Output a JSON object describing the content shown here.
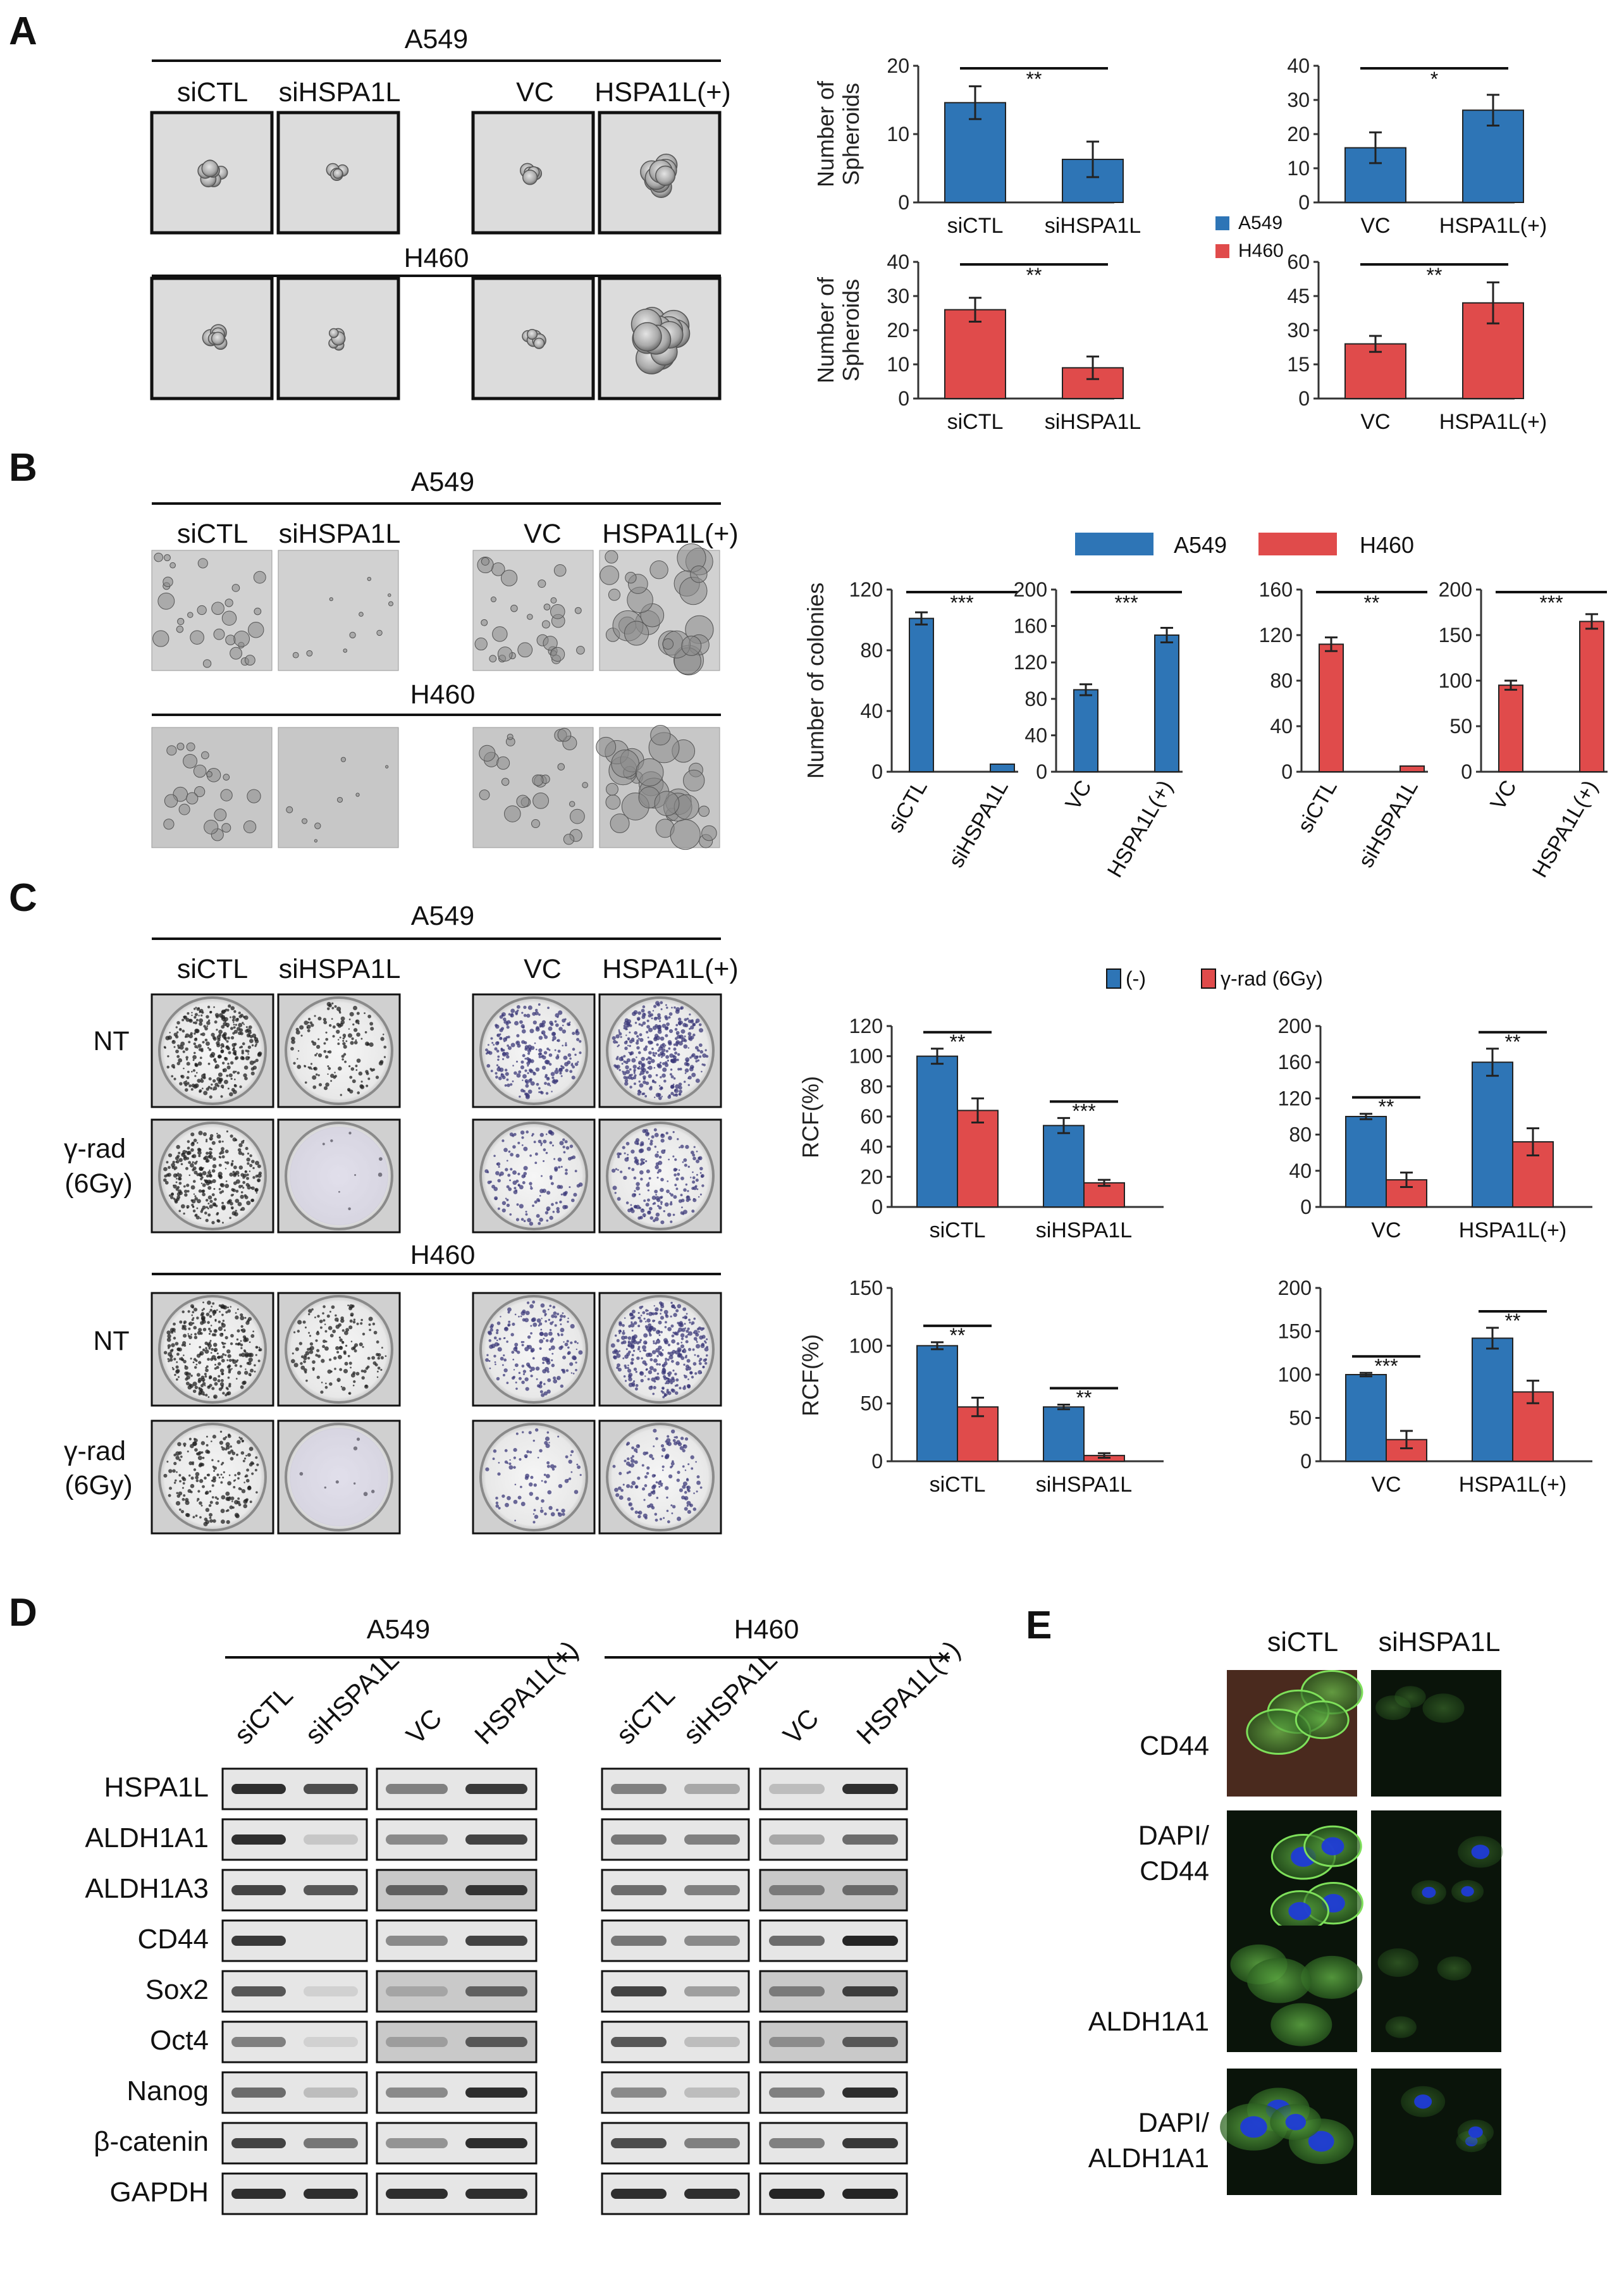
{
  "panels": {
    "A": "A",
    "B": "B",
    "C": "C",
    "D": "D",
    "E": "E"
  },
  "colors": {
    "blue": "#2E75B6",
    "red": "#E04B4B",
    "green_stain": "#3d8a2e",
    "nucleus": "#1f3bd6"
  },
  "panel_A": {
    "lines": [
      "A549",
      "H460"
    ],
    "sirna_labels": [
      "siCTL",
      "siHSPA1L"
    ],
    "overexp_labels": [
      "VC",
      "HSPA1L(+)"
    ],
    "ylabel": "Number of Spheroids",
    "legend": [
      "A549",
      "H460"
    ]
  },
  "panel_B": {
    "lines": [
      "A549",
      "H460"
    ],
    "sirna_labels": [
      "siCTL",
      "siHSPA1L"
    ],
    "overexp_labels": [
      "VC",
      "HSPA1L(+)"
    ],
    "ylabel": "Number of colonies",
    "legend": [
      "A549",
      "H460"
    ]
  },
  "panel_C": {
    "lines": [
      "A549",
      "H460"
    ],
    "sirna_labels": [
      "siCTL",
      "siHSPA1L"
    ],
    "overexp_labels": [
      "VC",
      "HSPA1L(+)"
    ],
    "row_labels": [
      "NT",
      "γ-rad",
      "(6Gy)"
    ],
    "ylabel": "RCF(%)",
    "legend": [
      "(-)",
      "γ-rad (6Gy)"
    ]
  },
  "panel_D": {
    "lines": [
      "A549",
      "H460"
    ],
    "lanes": [
      "siCTL",
      "siHSPA1L",
      "VC",
      "HSPA1L(+)"
    ],
    "proteins": [
      "HSPA1L",
      "ALDH1A1",
      "ALDH1A3",
      "CD44",
      "Sox2",
      "Oct4",
      "Nanog",
      "β-catenin",
      "GAPDH"
    ]
  },
  "panel_E": {
    "cols": [
      "siCTL",
      "siHSPA1L"
    ],
    "rows": [
      "CD44",
      "DAPI/",
      "CD44",
      "ALDH1A1",
      "DAPI/",
      "ALDH1A1"
    ]
  },
  "chart_data": [
    {
      "id": "A1",
      "type": "bar",
      "title": "",
      "xlabel": "",
      "ylabel": "Number of Spheroids",
      "categories": [
        "siCTL",
        "siHSPA1L"
      ],
      "series": [
        {
          "name": "A549",
          "values": [
            14.6,
            6.3
          ],
          "errors": [
            2.4,
            2.6
          ]
        }
      ],
      "ylim": [
        0,
        20
      ],
      "ticks": [
        0,
        10,
        20
      ],
      "sig": [
        "**"
      ],
      "color": "#2E75B6"
    },
    {
      "id": "A2",
      "type": "bar",
      "title": "",
      "xlabel": "",
      "ylabel": "",
      "categories": [
        "VC",
        "HSPA1L(+)"
      ],
      "series": [
        {
          "name": "A549",
          "values": [
            16,
            27
          ],
          "errors": [
            4.5,
            4.5
          ]
        }
      ],
      "ylim": [
        0,
        40
      ],
      "ticks": [
        0,
        10,
        20,
        30,
        40
      ],
      "sig": [
        "*"
      ],
      "color": "#2E75B6"
    },
    {
      "id": "A3",
      "type": "bar",
      "title": "",
      "xlabel": "",
      "ylabel": "Number of Spheroids",
      "categories": [
        "siCTL",
        "siHSPA1L"
      ],
      "series": [
        {
          "name": "H460",
          "values": [
            26,
            9
          ],
          "errors": [
            3.5,
            3.3
          ]
        }
      ],
      "ylim": [
        0,
        40
      ],
      "ticks": [
        0,
        10,
        20,
        30,
        40
      ],
      "sig": [
        "**"
      ],
      "color": "#E04B4B"
    },
    {
      "id": "A4",
      "type": "bar",
      "title": "",
      "xlabel": "",
      "ylabel": "",
      "categories": [
        "VC",
        "HSPA1L(+)"
      ],
      "series": [
        {
          "name": "H460",
          "values": [
            24,
            42
          ],
          "errors": [
            3.5,
            9
          ]
        }
      ],
      "ylim": [
        0,
        60
      ],
      "ticks": [
        0,
        15,
        30,
        45,
        60
      ],
      "sig": [
        "**"
      ],
      "color": "#E04B4B"
    },
    {
      "id": "B1",
      "type": "bar",
      "title": "",
      "xlabel": "",
      "ylabel": "Number of colonies",
      "categories": [
        "siCTL",
        "siHSPA1L"
      ],
      "series": [
        {
          "name": "A549",
          "values": [
            101,
            5
          ],
          "errors": [
            4,
            0
          ]
        }
      ],
      "ylim": [
        0,
        120
      ],
      "ticks": [
        0,
        40,
        80,
        120
      ],
      "sig": [
        "***"
      ],
      "color": "#2E75B6"
    },
    {
      "id": "B2",
      "type": "bar",
      "title": "",
      "xlabel": "",
      "ylabel": "",
      "categories": [
        "VC",
        "HSPA1L(+)"
      ],
      "series": [
        {
          "name": "A549",
          "values": [
            90,
            150
          ],
          "errors": [
            6,
            8
          ]
        }
      ],
      "ylim": [
        0,
        200
      ],
      "ticks": [
        0,
        40,
        80,
        120,
        160,
        200
      ],
      "sig": [
        "***"
      ],
      "color": "#2E75B6"
    },
    {
      "id": "B3",
      "type": "bar",
      "title": "",
      "xlabel": "",
      "ylabel": "",
      "categories": [
        "siCTL",
        "siHSPA1L"
      ],
      "series": [
        {
          "name": "H460",
          "values": [
            112,
            5
          ],
          "errors": [
            6,
            0
          ]
        }
      ],
      "ylim": [
        0,
        160
      ],
      "ticks": [
        0,
        40,
        80,
        120,
        160
      ],
      "sig": [
        "**"
      ],
      "color": "#E04B4B"
    },
    {
      "id": "B4",
      "type": "bar",
      "title": "",
      "xlabel": "",
      "ylabel": "",
      "categories": [
        "VC",
        "HSPA1L(+)"
      ],
      "series": [
        {
          "name": "H460",
          "values": [
            95,
            165
          ],
          "errors": [
            5,
            8
          ]
        }
      ],
      "ylim": [
        0,
        200
      ],
      "ticks": [
        0,
        50,
        100,
        150,
        200
      ],
      "sig": [
        "***"
      ],
      "color": "#E04B4B"
    },
    {
      "id": "C1",
      "type": "bar",
      "title": "",
      "xlabel": "",
      "ylabel": "RCF(%)",
      "categories": [
        "siCTL",
        "siHSPA1L"
      ],
      "series": [
        {
          "name": "(-)",
          "values": [
            100,
            54
          ]
        },
        {
          "name": "γ-rad (6Gy)",
          "values": [
            64,
            16
          ]
        }
      ],
      "errors": [
        [
          5,
          5
        ],
        [
          8,
          2
        ]
      ],
      "ylim": [
        0,
        120
      ],
      "ticks": [
        0,
        20,
        40,
        60,
        80,
        100,
        120
      ],
      "sig": [
        "**",
        "***"
      ]
    },
    {
      "id": "C2",
      "type": "bar",
      "title": "",
      "xlabel": "",
      "ylabel": "",
      "categories": [
        "VC",
        "HSPA1L(+)"
      ],
      "series": [
        {
          "name": "(-)",
          "values": [
            100,
            160
          ]
        },
        {
          "name": "γ-rad (6Gy)",
          "values": [
            30,
            72
          ]
        }
      ],
      "errors": [
        [
          3,
          15
        ],
        [
          8,
          15
        ]
      ],
      "ylim": [
        0,
        200
      ],
      "ticks": [
        0,
        40,
        80,
        120,
        160,
        200
      ],
      "sig": [
        "**",
        "**"
      ]
    },
    {
      "id": "C3",
      "type": "bar",
      "title": "",
      "xlabel": "",
      "ylabel": "RCF(%)",
      "categories": [
        "siCTL",
        "siHSPA1L"
      ],
      "series": [
        {
          "name": "(-)",
          "values": [
            100,
            47
          ]
        },
        {
          "name": "γ-rad (6Gy)",
          "values": [
            47,
            5
          ]
        }
      ],
      "errors": [
        [
          3,
          2
        ],
        [
          8,
          2
        ]
      ],
      "ylim": [
        0,
        150
      ],
      "ticks": [
        0,
        50,
        100,
        150
      ],
      "sig": [
        "**",
        "**"
      ]
    },
    {
      "id": "C4",
      "type": "bar",
      "title": "",
      "xlabel": "",
      "ylabel": "",
      "categories": [
        "VC",
        "HSPA1L(+)"
      ],
      "series": [
        {
          "name": "(-)",
          "values": [
            100,
            142
          ]
        },
        {
          "name": "γ-rad (6Gy)",
          "values": [
            25,
            80
          ]
        }
      ],
      "errors": [
        [
          2,
          12
        ],
        [
          10,
          13
        ]
      ],
      "ylim": [
        0,
        200
      ],
      "ticks": [
        0,
        50,
        100,
        150,
        200
      ],
      "sig": [
        "***",
        "**"
      ]
    }
  ]
}
